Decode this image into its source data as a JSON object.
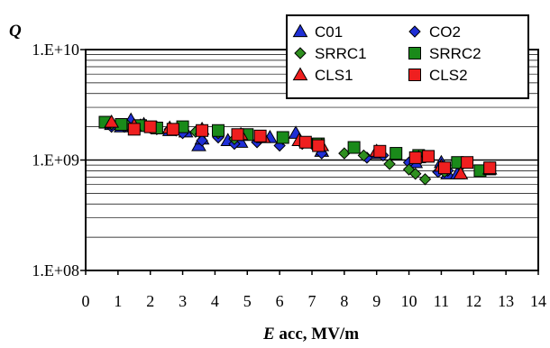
{
  "chart_data": {
    "type": "scatter",
    "y_scale": "log",
    "ylabel": "Q",
    "xlabel_italic": "E",
    "xlabel_rest": " acc, MV/m",
    "xlim": [
      0,
      14
    ],
    "ylim": [
      100000000,
      10000000000
    ],
    "x_ticks": [
      "0",
      "1",
      "2",
      "3",
      "4",
      "5",
      "6",
      "7",
      "8",
      "9",
      "10",
      "11",
      "12",
      "13",
      "14"
    ],
    "y_ticks": [
      {
        "value": 10000000000,
        "label": "1.E+10"
      },
      {
        "value": 1000000000,
        "label": "1.E+09"
      },
      {
        "value": 100000000,
        "label": "1.E+08"
      }
    ],
    "grid": "horizontal minor + major",
    "legend_position": "top-right",
    "series": [
      {
        "name": "C01",
        "marker": "triangle",
        "color": "#1f2fd6",
        "points": [
          [
            0.8,
            2100000000.0
          ],
          [
            1.1,
            2000000000.0
          ],
          [
            1.4,
            2300000000.0
          ],
          [
            1.8,
            2100000000.0
          ],
          [
            2.2,
            1950000000.0
          ],
          [
            2.6,
            1850000000.0
          ],
          [
            3.1,
            1800000000.0
          ],
          [
            3.5,
            1350000000.0
          ],
          [
            3.6,
            1550000000.0
          ],
          [
            4.4,
            1500000000.0
          ],
          [
            4.8,
            1450000000.0
          ],
          [
            5.7,
            1600000000.0
          ],
          [
            6.5,
            1750000000.0
          ],
          [
            7.3,
            1200000000.0
          ],
          [
            9.0,
            1150000000.0
          ],
          [
            10.2,
            950000000.0
          ],
          [
            11.0,
            950000000.0
          ],
          [
            11.2,
            750000000.0
          ],
          [
            11.5,
            750000000.0
          ]
        ]
      },
      {
        "name": "CO2",
        "marker": "diamond",
        "color": "#1f2fd6",
        "points": [
          [
            0.8,
            2000000000.0
          ],
          [
            1.2,
            2000000000.0
          ],
          [
            1.7,
            2100000000.0
          ],
          [
            2.2,
            1900000000.0
          ],
          [
            2.6,
            1900000000.0
          ],
          [
            3.0,
            1750000000.0
          ],
          [
            3.6,
            1500000000.0
          ],
          [
            4.1,
            1600000000.0
          ],
          [
            4.6,
            1400000000.0
          ],
          [
            5.3,
            1450000000.0
          ],
          [
            6.0,
            1350000000.0
          ],
          [
            6.7,
            1400000000.0
          ],
          [
            7.3,
            1150000000.0
          ],
          [
            8.7,
            1050000000.0
          ],
          [
            9.2,
            1100000000.0
          ],
          [
            10.0,
            950000000.0
          ],
          [
            10.9,
            780000000.0
          ],
          [
            11.2,
            800000000.0
          ]
        ]
      },
      {
        "name": "SRRC1",
        "marker": "diamond",
        "color": "#2f8f1f",
        "points": [
          [
            0.8,
            2100000000.0
          ],
          [
            1.3,
            2050000000.0
          ],
          [
            2.0,
            2000000000.0
          ],
          [
            2.8,
            1850000000.0
          ],
          [
            3.4,
            1800000000.0
          ],
          [
            4.1,
            1750000000.0
          ],
          [
            4.6,
            1550000000.0
          ],
          [
            5.4,
            1600000000.0
          ],
          [
            6.1,
            1550000000.0
          ],
          [
            7.0,
            1400000000.0
          ],
          [
            8.0,
            1150000000.0
          ],
          [
            8.6,
            1100000000.0
          ],
          [
            9.4,
            920000000.0
          ],
          [
            10.0,
            820000000.0
          ],
          [
            10.2,
            750000000.0
          ],
          [
            10.5,
            670000000.0
          ],
          [
            11.1,
            780000000.0
          ],
          [
            11.6,
            880000000.0
          ]
        ]
      },
      {
        "name": "SRRC2",
        "marker": "square",
        "color": "#1a8a1a",
        "points": [
          [
            0.6,
            2200000000.0
          ],
          [
            1.1,
            2100000000.0
          ],
          [
            1.7,
            2050000000.0
          ],
          [
            2.2,
            1950000000.0
          ],
          [
            3.0,
            2000000000.0
          ],
          [
            4.1,
            1850000000.0
          ],
          [
            5.0,
            1700000000.0
          ],
          [
            6.1,
            1600000000.0
          ],
          [
            7.2,
            1400000000.0
          ],
          [
            8.3,
            1300000000.0
          ],
          [
            9.6,
            1150000000.0
          ],
          [
            10.3,
            1100000000.0
          ],
          [
            11.5,
            950000000.0
          ],
          [
            12.2,
            800000000.0
          ],
          [
            12.5,
            830000000.0
          ]
        ]
      },
      {
        "name": "CLS1",
        "marker": "triangle",
        "color": "#ef1f1f",
        "points": [
          [
            0.8,
            2200000000.0
          ],
          [
            1.5,
            2050000000.0
          ],
          [
            2.6,
            1950000000.0
          ],
          [
            3.6,
            1900000000.0
          ],
          [
            4.8,
            1700000000.0
          ],
          [
            5.5,
            1600000000.0
          ],
          [
            6.6,
            1500000000.0
          ],
          [
            7.3,
            1350000000.0
          ],
          [
            9.0,
            1200000000.0
          ],
          [
            10.3,
            1050000000.0
          ],
          [
            11.0,
            880000000.0
          ],
          [
            11.6,
            750000000.0
          ],
          [
            12.5,
            830000000.0
          ]
        ]
      },
      {
        "name": "CLS2",
        "marker": "square",
        "color": "#ef1f1f",
        "points": [
          [
            1.5,
            1900000000.0
          ],
          [
            2.0,
            2000000000.0
          ],
          [
            2.7,
            1900000000.0
          ],
          [
            3.6,
            1850000000.0
          ],
          [
            4.7,
            1700000000.0
          ],
          [
            5.4,
            1650000000.0
          ],
          [
            6.8,
            1450000000.0
          ],
          [
            7.2,
            1350000000.0
          ],
          [
            9.1,
            1200000000.0
          ],
          [
            10.2,
            1050000000.0
          ],
          [
            10.6,
            1080000000.0
          ],
          [
            11.1,
            850000000.0
          ],
          [
            11.8,
            950000000.0
          ],
          [
            12.5,
            850000000.0
          ]
        ]
      }
    ]
  }
}
